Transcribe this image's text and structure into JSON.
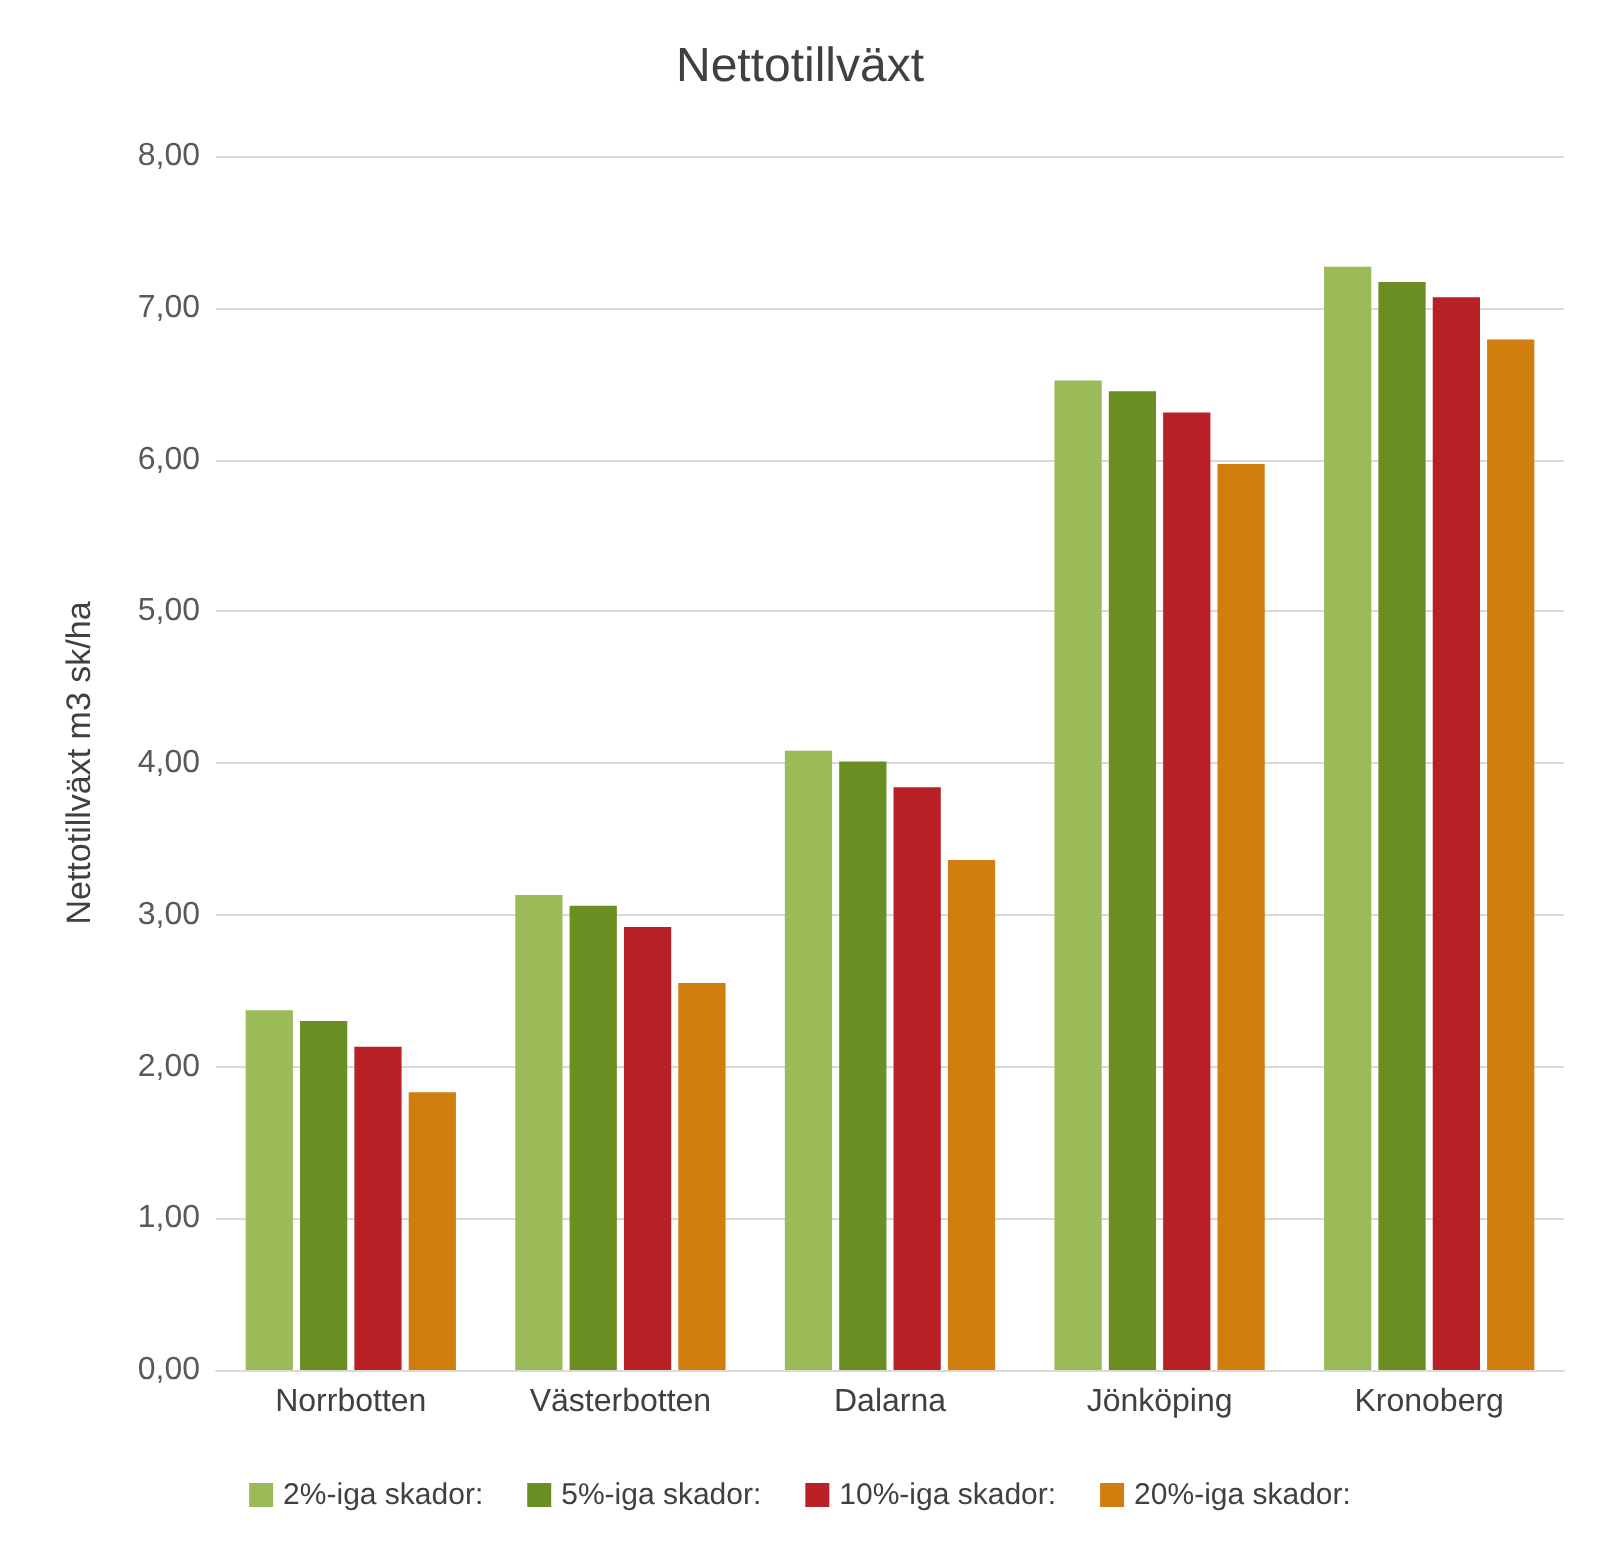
{
  "chart_data": {
    "type": "bar",
    "title": "Nettotillväxt",
    "ylabel": "Nettotillväxt m3 sk/ha",
    "categories": [
      "Norrbotten",
      "Västerbotten",
      "Dalarna",
      "Jönköping",
      "Kronoberg"
    ],
    "series": [
      {
        "name": "2%-iga skador:",
        "color": "#9bbb59",
        "values": [
          2.37,
          3.13,
          4.08,
          6.52,
          7.27
        ]
      },
      {
        "name": "5%-iga skador:",
        "color": "#6a8e22",
        "values": [
          2.3,
          3.06,
          4.01,
          6.45,
          7.17
        ]
      },
      {
        "name": "10%-iga skador:",
        "color": "#b82025",
        "values": [
          2.13,
          2.92,
          3.84,
          6.31,
          7.07
        ]
      },
      {
        "name": "20%-iga skador:",
        "color": "#d07e0e",
        "values": [
          1.83,
          2.55,
          3.36,
          5.97,
          6.79
        ]
      }
    ],
    "ylim": [
      0,
      8
    ],
    "yticks": [
      {
        "value": 0,
        "label": "0,00"
      },
      {
        "value": 1,
        "label": "1,00"
      },
      {
        "value": 2,
        "label": "2,00"
      },
      {
        "value": 3,
        "label": "3,00"
      },
      {
        "value": 4,
        "label": "4,00"
      },
      {
        "value": 5,
        "label": "5,00"
      },
      {
        "value": 6,
        "label": "6,00"
      },
      {
        "value": 7,
        "label": "7,00"
      },
      {
        "value": 8,
        "label": "8,00"
      }
    ],
    "grid": "y",
    "legend": "bottom"
  }
}
